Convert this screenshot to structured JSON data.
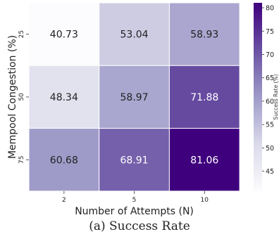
{
  "chart_data": {
    "type": "heatmap",
    "x_categories": [
      "2",
      "5",
      "10"
    ],
    "y_categories": [
      "25",
      "50",
      "75"
    ],
    "values": [
      [
        40.73,
        53.04,
        58.93
      ],
      [
        48.34,
        58.97,
        71.88
      ],
      [
        60.68,
        68.91,
        81.06
      ]
    ],
    "xlabel": "Number of Attempts (N)",
    "ylabel": "Mempool Congestion (%)",
    "colorbar_label": "Success Rate (%)",
    "colorbar_range": [
      40.73,
      81.06
    ],
    "colorbar_ticks": [
      45,
      50,
      55,
      60,
      65,
      70,
      75,
      80
    ],
    "colormap": "Purples",
    "colors": {
      "low": "#fcfbfd",
      "mid": "#9e9ac8",
      "high": "#3f007d"
    }
  },
  "caption": "(a) Success Rate"
}
